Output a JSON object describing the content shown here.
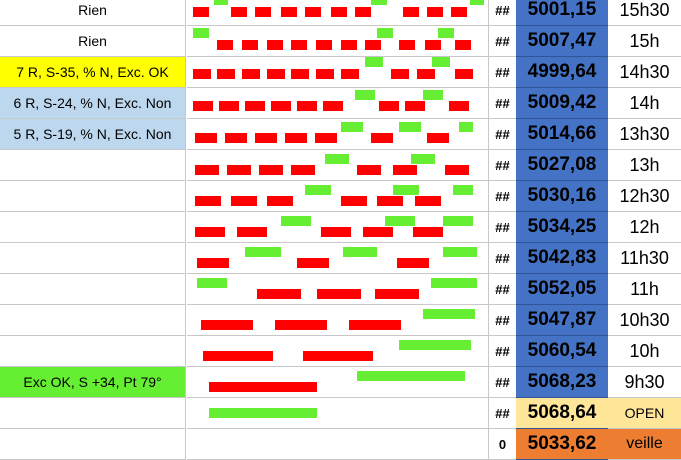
{
  "colors": {
    "yellow": "#ffff00",
    "light_blue": "#bdd7ee",
    "green": "#66ee33",
    "red": "#ff0000",
    "price_blue": "#4472c4",
    "open_yellow": "#ffe699",
    "veille_orange": "#ed7d31"
  },
  "rows": [
    {
      "label": "Rien",
      "label_bg": "",
      "hash": "##",
      "price": "5001,15",
      "time": "15h30",
      "bars": [
        {
          "c": "r",
          "x": 6,
          "w": 16,
          "dy": 2
        },
        {
          "c": "g",
          "x": 27,
          "w": 14,
          "dy": -10
        },
        {
          "c": "r",
          "x": 44,
          "w": 16,
          "dy": 2
        },
        {
          "c": "r",
          "x": 68,
          "w": 16,
          "dy": 2
        },
        {
          "c": "r",
          "x": 94,
          "w": 16,
          "dy": 2
        },
        {
          "c": "r",
          "x": 118,
          "w": 16,
          "dy": 2
        },
        {
          "c": "r",
          "x": 144,
          "w": 16,
          "dy": 2
        },
        {
          "c": "r",
          "x": 168,
          "w": 16,
          "dy": 2
        },
        {
          "c": "g",
          "x": 184,
          "w": 16,
          "dy": -10
        },
        {
          "c": "r",
          "x": 216,
          "w": 16,
          "dy": 2
        },
        {
          "c": "r",
          "x": 240,
          "w": 16,
          "dy": 2
        },
        {
          "c": "r",
          "x": 264,
          "w": 16,
          "dy": 2
        },
        {
          "c": "g",
          "x": 283,
          "w": 14,
          "dy": -10
        }
      ]
    },
    {
      "label": "Rien",
      "label_bg": "",
      "hash": "##",
      "price": "5007,47",
      "time": "15h",
      "bars": [
        {
          "c": "g",
          "x": 6,
          "w": 16,
          "dy": -8
        },
        {
          "c": "r",
          "x": 30,
          "w": 16,
          "dy": 4
        },
        {
          "c": "r",
          "x": 55,
          "w": 16,
          "dy": 4
        },
        {
          "c": "r",
          "x": 80,
          "w": 16,
          "dy": 4
        },
        {
          "c": "r",
          "x": 104,
          "w": 16,
          "dy": 4
        },
        {
          "c": "r",
          "x": 129,
          "w": 16,
          "dy": 4
        },
        {
          "c": "r",
          "x": 154,
          "w": 16,
          "dy": 4
        },
        {
          "c": "r",
          "x": 178,
          "w": 16,
          "dy": 4
        },
        {
          "c": "g",
          "x": 190,
          "w": 16,
          "dy": -8
        },
        {
          "c": "r",
          "x": 212,
          "w": 16,
          "dy": 4
        },
        {
          "c": "r",
          "x": 238,
          "w": 16,
          "dy": 4
        },
        {
          "c": "g",
          "x": 251,
          "w": 16,
          "dy": -8
        },
        {
          "c": "r",
          "x": 268,
          "w": 16,
          "dy": 4
        }
      ]
    },
    {
      "label": "7 R, S-35,  % N, Exc. OK",
      "label_bg": "#ffff00",
      "hash": "##",
      "price": "4999,64",
      "time": "14h30",
      "bars": [
        {
          "c": "r",
          "x": 6,
          "w": 18,
          "dy": 2
        },
        {
          "c": "r",
          "x": 30,
          "w": 18,
          "dy": 2
        },
        {
          "c": "r",
          "x": 55,
          "w": 18,
          "dy": 2
        },
        {
          "c": "r",
          "x": 80,
          "w": 18,
          "dy": 2
        },
        {
          "c": "r",
          "x": 104,
          "w": 18,
          "dy": 2
        },
        {
          "c": "r",
          "x": 129,
          "w": 18,
          "dy": 2
        },
        {
          "c": "r",
          "x": 154,
          "w": 18,
          "dy": 2
        },
        {
          "c": "g",
          "x": 178,
          "w": 18,
          "dy": -10
        },
        {
          "c": "r",
          "x": 204,
          "w": 18,
          "dy": 2
        },
        {
          "c": "r",
          "x": 230,
          "w": 18,
          "dy": 2
        },
        {
          "c": "g",
          "x": 245,
          "w": 18,
          "dy": -10
        },
        {
          "c": "r",
          "x": 268,
          "w": 18,
          "dy": 2
        }
      ]
    },
    {
      "label": "6 R, S-24,  % N, Exc. Non",
      "label_bg": "#bdd7ee",
      "hash": "##",
      "price": "5009,42",
      "time": "14h",
      "bars": [
        {
          "c": "r",
          "x": 6,
          "w": 20,
          "dy": 3
        },
        {
          "c": "r",
          "x": 32,
          "w": 20,
          "dy": 3
        },
        {
          "c": "r",
          "x": 58,
          "w": 20,
          "dy": 3
        },
        {
          "c": "r",
          "x": 84,
          "w": 20,
          "dy": 3
        },
        {
          "c": "r",
          "x": 110,
          "w": 20,
          "dy": 3
        },
        {
          "c": "r",
          "x": 136,
          "w": 20,
          "dy": 3
        },
        {
          "c": "g",
          "x": 168,
          "w": 20,
          "dy": -8
        },
        {
          "c": "r",
          "x": 192,
          "w": 20,
          "dy": 3
        },
        {
          "c": "r",
          "x": 218,
          "w": 20,
          "dy": 3
        },
        {
          "c": "g",
          "x": 236,
          "w": 20,
          "dy": -8
        },
        {
          "c": "r",
          "x": 262,
          "w": 20,
          "dy": 3
        }
      ]
    },
    {
      "label": "5 R, S-19,  % N, Exc. Non",
      "label_bg": "#bdd7ee",
      "hash": "##",
      "price": "5014,66",
      "time": "13h30",
      "bars": [
        {
          "c": "r",
          "x": 8,
          "w": 22,
          "dy": 4
        },
        {
          "c": "r",
          "x": 38,
          "w": 22,
          "dy": 4
        },
        {
          "c": "r",
          "x": 68,
          "w": 22,
          "dy": 4
        },
        {
          "c": "r",
          "x": 98,
          "w": 22,
          "dy": 4
        },
        {
          "c": "r",
          "x": 128,
          "w": 22,
          "dy": 4
        },
        {
          "c": "g",
          "x": 154,
          "w": 22,
          "dy": -7
        },
        {
          "c": "r",
          "x": 184,
          "w": 22,
          "dy": 4
        },
        {
          "c": "g",
          "x": 212,
          "w": 22,
          "dy": -7
        },
        {
          "c": "r",
          "x": 240,
          "w": 22,
          "dy": 4
        },
        {
          "c": "g",
          "x": 272,
          "w": 14,
          "dy": -7
        }
      ]
    },
    {
      "label": "",
      "label_bg": "",
      "hash": "##",
      "price": "5027,08",
      "time": "13h",
      "bars": [
        {
          "c": "r",
          "x": 8,
          "w": 24,
          "dy": 5
        },
        {
          "c": "r",
          "x": 40,
          "w": 24,
          "dy": 5
        },
        {
          "c": "r",
          "x": 72,
          "w": 24,
          "dy": 5
        },
        {
          "c": "r",
          "x": 104,
          "w": 24,
          "dy": 5
        },
        {
          "c": "g",
          "x": 138,
          "w": 24,
          "dy": -6
        },
        {
          "c": "r",
          "x": 170,
          "w": 24,
          "dy": 5
        },
        {
          "c": "r",
          "x": 206,
          "w": 24,
          "dy": 5
        },
        {
          "c": "g",
          "x": 224,
          "w": 24,
          "dy": -6
        },
        {
          "c": "r",
          "x": 258,
          "w": 24,
          "dy": 5
        }
      ]
    },
    {
      "label": "",
      "label_bg": "",
      "hash": "##",
      "price": "5030,16",
      "time": "12h30",
      "bars": [
        {
          "c": "r",
          "x": 8,
          "w": 26,
          "dy": 5
        },
        {
          "c": "r",
          "x": 44,
          "w": 26,
          "dy": 5
        },
        {
          "c": "r",
          "x": 80,
          "w": 26,
          "dy": 5
        },
        {
          "c": "g",
          "x": 118,
          "w": 26,
          "dy": -6
        },
        {
          "c": "r",
          "x": 154,
          "w": 26,
          "dy": 5
        },
        {
          "c": "r",
          "x": 190,
          "w": 26,
          "dy": 5
        },
        {
          "c": "g",
          "x": 206,
          "w": 26,
          "dy": -6
        },
        {
          "c": "r",
          "x": 228,
          "w": 26,
          "dy": 5
        },
        {
          "c": "g",
          "x": 266,
          "w": 20,
          "dy": -6
        }
      ]
    },
    {
      "label": "",
      "label_bg": "",
      "hash": "##",
      "price": "5034,25",
      "time": "12h",
      "bars": [
        {
          "c": "r",
          "x": 8,
          "w": 30,
          "dy": 5
        },
        {
          "c": "r",
          "x": 50,
          "w": 30,
          "dy": 5
        },
        {
          "c": "g",
          "x": 94,
          "w": 30,
          "dy": -6
        },
        {
          "c": "r",
          "x": 134,
          "w": 30,
          "dy": 5
        },
        {
          "c": "r",
          "x": 176,
          "w": 30,
          "dy": 5
        },
        {
          "c": "g",
          "x": 198,
          "w": 30,
          "dy": -6
        },
        {
          "c": "r",
          "x": 226,
          "w": 30,
          "dy": 5
        },
        {
          "c": "g",
          "x": 256,
          "w": 30,
          "dy": -6
        }
      ]
    },
    {
      "label": "",
      "label_bg": "",
      "hash": "##",
      "price": "5042,83",
      "time": "11h30",
      "bars": [
        {
          "c": "r",
          "x": 10,
          "w": 32,
          "dy": 5
        },
        {
          "c": "g",
          "x": 58,
          "w": 36,
          "dy": -6
        },
        {
          "c": "r",
          "x": 110,
          "w": 32,
          "dy": 5
        },
        {
          "c": "g",
          "x": 156,
          "w": 34,
          "dy": -6
        },
        {
          "c": "r",
          "x": 210,
          "w": 32,
          "dy": 5
        },
        {
          "c": "g",
          "x": 256,
          "w": 34,
          "dy": -6
        }
      ]
    },
    {
      "label": "",
      "label_bg": "",
      "hash": "##",
      "price": "5052,05",
      "time": "11h",
      "bars": [
        {
          "c": "g",
          "x": 10,
          "w": 30,
          "dy": -6
        },
        {
          "c": "r",
          "x": 70,
          "w": 44,
          "dy": 5
        },
        {
          "c": "r",
          "x": 130,
          "w": 44,
          "dy": 5
        },
        {
          "c": "r",
          "x": 188,
          "w": 44,
          "dy": 5
        },
        {
          "c": "g",
          "x": 244,
          "w": 46,
          "dy": -6
        }
      ]
    },
    {
      "label": "",
      "label_bg": "",
      "hash": "##",
      "price": "5047,87",
      "time": "10h30",
      "bars": [
        {
          "c": "r",
          "x": 14,
          "w": 52,
          "dy": 5
        },
        {
          "c": "r",
          "x": 88,
          "w": 52,
          "dy": 5
        },
        {
          "c": "r",
          "x": 162,
          "w": 52,
          "dy": 5
        },
        {
          "c": "g",
          "x": 236,
          "w": 52,
          "dy": -6
        }
      ]
    },
    {
      "label": "",
      "label_bg": "",
      "hash": "##",
      "price": "5060,54",
      "time": "10h",
      "bars": [
        {
          "c": "r",
          "x": 16,
          "w": 70,
          "dy": 5
        },
        {
          "c": "r",
          "x": 116,
          "w": 70,
          "dy": 5
        },
        {
          "c": "g",
          "x": 212,
          "w": 72,
          "dy": -6
        }
      ]
    },
    {
      "label": "Exc OK, S +34, Pt 79°",
      "label_bg": "#66ee33",
      "hash": "##",
      "price": "5068,23",
      "time": "9h30",
      "bars": [
        {
          "c": "r",
          "x": 22,
          "w": 108,
          "dy": 5
        },
        {
          "c": "g",
          "x": 170,
          "w": 108,
          "dy": -6
        }
      ]
    },
    {
      "label": "",
      "label_bg": "",
      "hash": "##",
      "price": "5068,64",
      "time": "OPEN",
      "bars": [
        {
          "c": "g",
          "x": 22,
          "w": 108,
          "dy": 0
        }
      ]
    },
    {
      "label": "",
      "label_bg": "",
      "hash": "0",
      "price": "5033,62",
      "time": "veille",
      "bars": []
    }
  ]
}
